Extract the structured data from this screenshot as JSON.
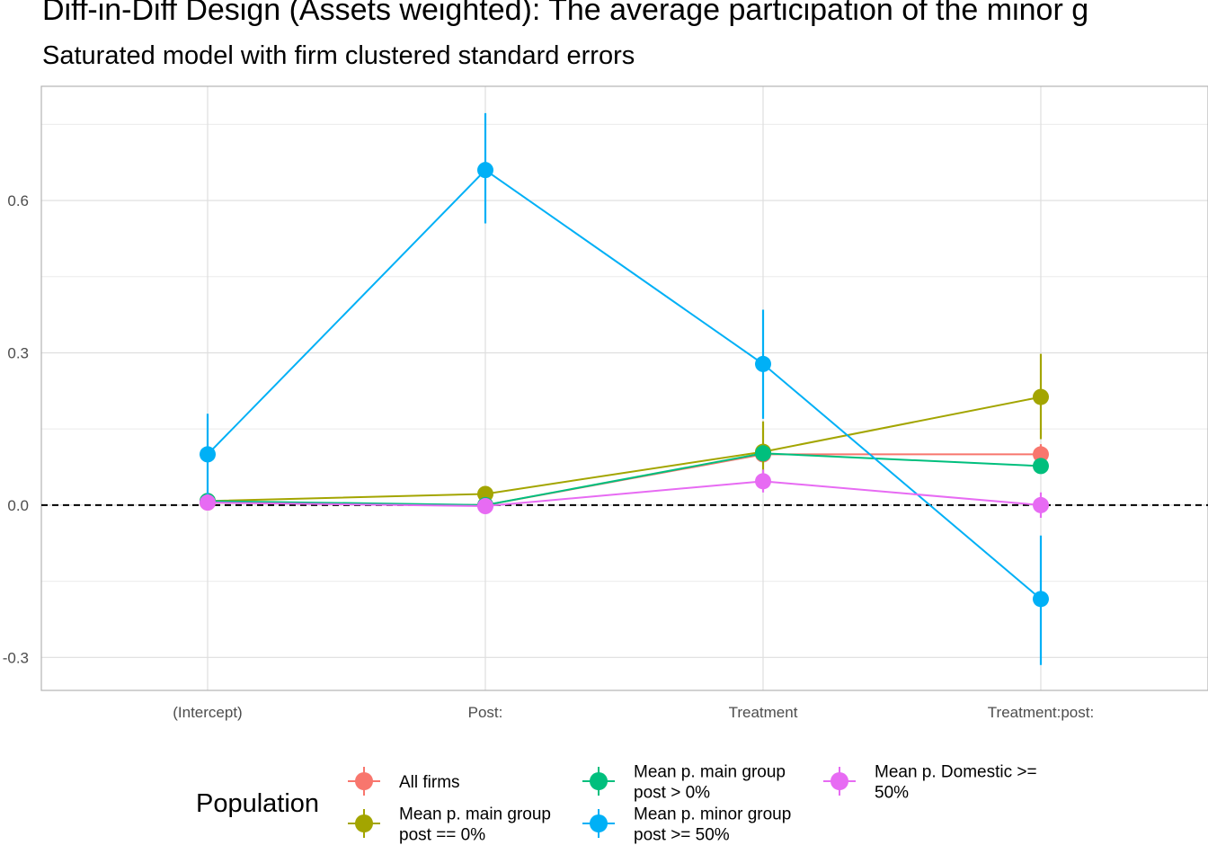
{
  "title": "Diff-in-Diff Design (Assets weighted): The average participation of the minor g",
  "subtitle": "Saturated model with firm clustered standard errors",
  "chart_data": {
    "type": "line",
    "categories": [
      "(Intercept)",
      "Post:",
      "Treatment",
      "Treatment:post:"
    ],
    "y_ticks": [
      -0.3,
      0.0,
      0.3,
      0.6
    ],
    "y_tick_labels": [
      "-0.3",
      "0.0",
      "0.3",
      "0.6"
    ],
    "ylim": [
      -0.365,
      0.825
    ],
    "grid": true,
    "reference_line": 0.0,
    "legend": {
      "title": "Population",
      "position": "bottom"
    },
    "series": [
      {
        "name": "All firms",
        "label_lines": [
          "All firms"
        ],
        "color": "#F8766D",
        "values": [
          0.005,
          0.0,
          0.1,
          0.1
        ],
        "lower": [
          0.005,
          0.0,
          0.1,
          0.08
        ],
        "upper": [
          0.005,
          0.0,
          0.1,
          0.12
        ]
      },
      {
        "name": "Mean p. main group post == 0%",
        "label_lines": [
          "Mean p. main group",
          "post == 0%"
        ],
        "color": "#A3A500",
        "values": [
          0.008,
          0.022,
          0.105,
          0.213
        ],
        "lower": [
          0.008,
          0.022,
          0.05,
          0.13
        ],
        "upper": [
          0.008,
          0.022,
          0.165,
          0.298
        ]
      },
      {
        "name": "Mean p. main group post > 0%",
        "label_lines": [
          "Mean p. main group",
          "post > 0%"
        ],
        "color": "#00BF7D",
        "values": [
          0.008,
          0.0,
          0.102,
          0.077
        ],
        "lower": [
          0.008,
          0.0,
          0.102,
          0.077
        ],
        "upper": [
          0.008,
          0.0,
          0.102,
          0.077
        ]
      },
      {
        "name": "Mean p. minor group post >= 50%",
        "label_lines": [
          "Mean p. minor group",
          "post >= 50%"
        ],
        "color": "#00B0F6",
        "values": [
          0.1,
          0.66,
          0.278,
          -0.185
        ],
        "lower": [
          0.02,
          0.555,
          0.17,
          -0.315
        ],
        "upper": [
          0.18,
          0.772,
          0.385,
          -0.06
        ]
      },
      {
        "name": "Mean p. Domestic >= 50%",
        "label_lines": [
          "Mean p. Domestic >=",
          "50%"
        ],
        "color": "#E76BF3",
        "values": [
          0.005,
          -0.002,
          0.047,
          0.0
        ],
        "lower": [
          0.005,
          -0.002,
          0.025,
          -0.025
        ],
        "upper": [
          0.005,
          -0.002,
          0.07,
          0.025
        ]
      }
    ]
  }
}
